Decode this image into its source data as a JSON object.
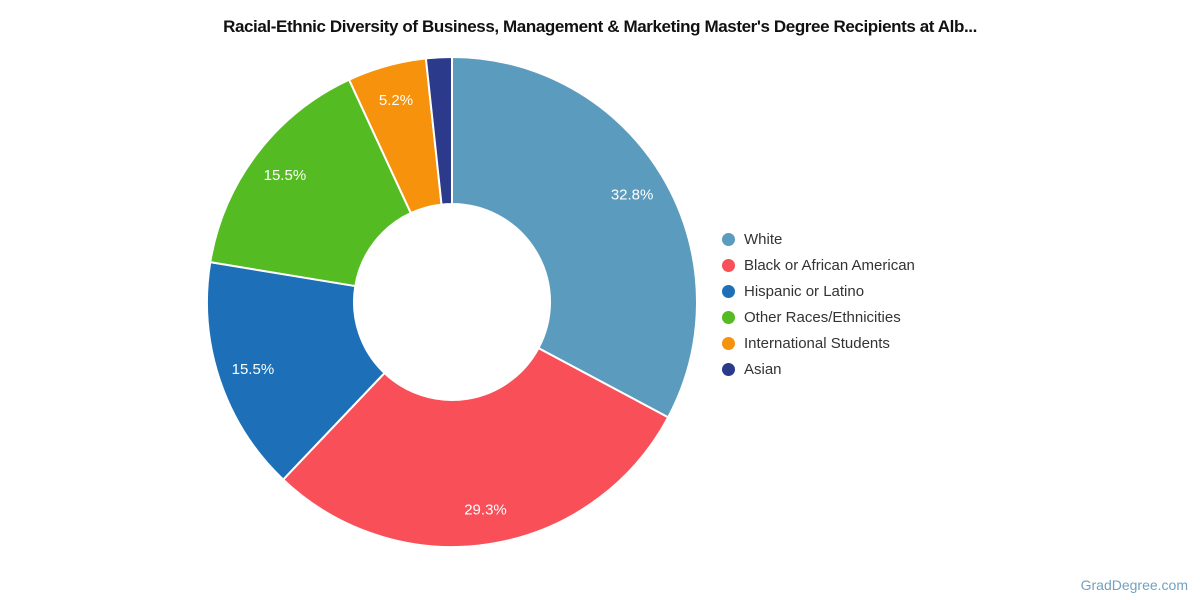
{
  "title": "Racial-Ethnic Diversity of Business, Management & Marketing Master's Degree Recipients at Alb...",
  "watermark": "GradDegree.com",
  "chart_data": {
    "type": "pie",
    "donut": true,
    "title": "Racial-Ethnic Diversity of Business, Management & Marketing Master's Degree Recipients at Alb...",
    "legend_position": "right",
    "start_angle_deg": 0,
    "direction": "clockwise",
    "min_label_pct": 5,
    "label_color": "#ffffff",
    "slice_border_color": "#ffffff",
    "series": [
      {
        "name": "White",
        "value": 32.8,
        "label": "32.8%",
        "color": "#5b9bbd"
      },
      {
        "name": "Black or African American",
        "value": 29.3,
        "label": "29.3%",
        "color": "#f94f58"
      },
      {
        "name": "Hispanic or Latino",
        "value": 15.5,
        "label": "15.5%",
        "color": "#1d70b8"
      },
      {
        "name": "Other Races/Ethnicities",
        "value": 15.5,
        "label": "15.5%",
        "color": "#55bb22"
      },
      {
        "name": "International Students",
        "value": 5.2,
        "label": "5.2%",
        "color": "#f6920b"
      },
      {
        "name": "Asian",
        "value": 1.7,
        "label": "",
        "color": "#2c3a8c"
      }
    ]
  }
}
